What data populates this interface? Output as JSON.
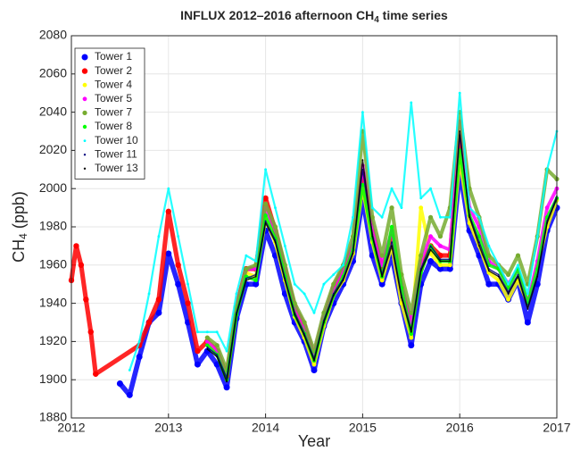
{
  "chart_data": {
    "type": "scatter",
    "title": [
      "INFLUX 2012–2016 afternoon  CH",
      "4",
      " time series"
    ],
    "xlabel": "Year",
    "ylabel": [
      "CH",
      "4",
      " (ppb)"
    ],
    "xlim": [
      2012,
      2017
    ],
    "xticks": [
      2012,
      2013,
      2014,
      2015,
      2016,
      2017
    ],
    "ylim": [
      1880,
      2080
    ],
    "yticks": [
      1880,
      1900,
      1920,
      1940,
      1960,
      1980,
      2000,
      2020,
      2040,
      2060,
      2080
    ],
    "grid": true,
    "legend": "upper left",
    "series": [
      {
        "name": "Tower 1",
        "color": "#0000ff",
        "x": [
          2012.5,
          2012.6,
          2012.7,
          2012.8,
          2012.9,
          2013.0,
          2013.1,
          2013.2,
          2013.3,
          2013.4,
          2013.5,
          2013.6,
          2013.7,
          2013.8,
          2013.9,
          2014.0,
          2014.1,
          2014.2,
          2014.3,
          2014.4,
          2014.5,
          2014.6,
          2014.7,
          2014.8,
          2014.9,
          2015.0,
          2015.1,
          2015.2,
          2015.3,
          2015.4,
          2015.5,
          2015.6,
          2015.7,
          2015.8,
          2015.9,
          2016.0,
          2016.1,
          2016.2,
          2016.3,
          2016.4,
          2016.5,
          2016.6,
          2016.7,
          2016.8,
          2016.9,
          2017.0
        ],
        "values": [
          1898,
          1892,
          1912,
          1930,
          1935,
          1966,
          1950,
          1930,
          1908,
          1915,
          1908,
          1896,
          1932,
          1950,
          1950,
          1978,
          1965,
          1945,
          1930,
          1920,
          1905,
          1928,
          1940,
          1950,
          1962,
          1995,
          1965,
          1950,
          1965,
          1940,
          1918,
          1950,
          1962,
          1958,
          1958,
          2010,
          1978,
          1965,
          1950,
          1950,
          1942,
          1952,
          1930,
          1950,
          1978,
          1990
        ]
      },
      {
        "name": "Tower 2",
        "color": "#ff0000",
        "x": [
          2012.0,
          2012.05,
          2012.1,
          2012.15,
          2012.2,
          2012.25,
          2012.7,
          2012.8,
          2012.9,
          2013.0,
          2013.1,
          2013.2,
          2013.3,
          2013.4,
          2013.5,
          2013.6,
          2013.7,
          2013.8,
          2013.9,
          2014.0,
          2014.1,
          2014.2,
          2014.3,
          2014.4,
          2014.5,
          2014.6,
          2014.7,
          2014.8,
          2014.9,
          2015.0,
          2015.1,
          2015.2,
          2015.3,
          2015.4,
          2015.5,
          2015.6,
          2015.7,
          2015.8,
          2015.9,
          2016.0
        ],
        "values": [
          1952,
          1970,
          1960,
          1942,
          1925,
          1903,
          1918,
          1930,
          1942,
          1988,
          1960,
          1940,
          1915,
          1920,
          1915,
          1902,
          1938,
          1958,
          1958,
          1995,
          1978,
          1958,
          1938,
          1928,
          1912,
          1932,
          1948,
          1958,
          1970,
          2008,
          1978,
          1958,
          1975,
          1948,
          1928,
          1958,
          1970,
          1965,
          1965,
          2025
        ]
      },
      {
        "name": "Tower 4",
        "color": "#ffff00",
        "x": [
          2013.4,
          2013.5,
          2013.6,
          2013.7,
          2013.8,
          2013.9,
          2014.0,
          2014.1,
          2014.2,
          2014.3,
          2014.4,
          2014.5,
          2014.6,
          2014.7,
          2014.8,
          2014.9,
          2015.0,
          2015.1,
          2015.2,
          2015.3,
          2015.4,
          2015.5,
          2015.6,
          2015.7,
          2015.8,
          2015.9,
          2016.0,
          2016.1,
          2016.2,
          2016.3,
          2016.4,
          2016.5,
          2016.6,
          2016.7,
          2016.8,
          2016.9,
          2017.0
        ],
        "values": [
          1920,
          1914,
          1902,
          1936,
          1956,
          1954,
          1984,
          1972,
          1952,
          1933,
          1922,
          1908,
          1928,
          1944,
          1952,
          1966,
          2000,
          1972,
          1952,
          1970,
          1940,
          1922,
          1990,
          1966,
          1960,
          1960,
          2015,
          1982,
          1970,
          1956,
          1952,
          1942,
          1952,
          1940,
          1960,
          1980,
          1994
        ]
      },
      {
        "name": "Tower 5",
        "color": "#ff00ff",
        "x": [
          2013.4,
          2013.5,
          2013.6,
          2013.7,
          2013.8,
          2013.9,
          2014.0,
          2014.1,
          2014.2,
          2014.3,
          2014.4,
          2014.5,
          2014.6,
          2014.7,
          2014.8,
          2014.9,
          2015.0,
          2015.1,
          2015.2,
          2015.3,
          2015.4,
          2015.5,
          2015.6,
          2015.7,
          2015.8,
          2015.9,
          2016.0,
          2016.1,
          2016.2,
          2016.3,
          2016.4,
          2016.5,
          2016.6,
          2016.7,
          2016.8,
          2016.9,
          2017.0
        ],
        "values": [
          1920,
          1915,
          1902,
          1938,
          1958,
          1958,
          1990,
          1978,
          1958,
          1938,
          1928,
          1913,
          1933,
          1948,
          1958,
          1972,
          2012,
          1980,
          1960,
          1978,
          1950,
          1930,
          1962,
          1975,
          1970,
          1968,
          2035,
          1990,
          1980,
          1962,
          1958,
          1950,
          1958,
          1940,
          1962,
          1990,
          2000
        ]
      },
      {
        "name": "Tower 7",
        "color": "#77ac30",
        "x": [
          2013.4,
          2013.5,
          2013.6,
          2013.7,
          2013.8,
          2013.9,
          2014.0,
          2014.1,
          2014.2,
          2014.3,
          2014.4,
          2014.5,
          2014.6,
          2014.7,
          2014.8,
          2014.9,
          2015.0,
          2015.1,
          2015.2,
          2015.3,
          2015.4,
          2015.5,
          2015.6,
          2015.7,
          2015.8,
          2015.9,
          2016.0,
          2016.1,
          2016.2,
          2016.3,
          2016.4,
          2016.5,
          2016.6,
          2016.7,
          2016.8,
          2016.9,
          2017.0
        ],
        "values": [
          1922,
          1918,
          1905,
          1938,
          1958,
          1960,
          1992,
          1980,
          1960,
          1940,
          1930,
          1915,
          1935,
          1950,
          1960,
          1975,
          2030,
          1985,
          1965,
          1990,
          1955,
          1935,
          1965,
          1985,
          1975,
          1990,
          2040,
          2000,
          1985,
          1965,
          1960,
          1955,
          1965,
          1950,
          1975,
          2010,
          2005
        ]
      },
      {
        "name": "Tower 8",
        "color": "#00ff00",
        "x": [
          2013.4,
          2013.5,
          2013.6,
          2013.7,
          2013.8,
          2013.9,
          2014.0,
          2014.1,
          2014.2,
          2014.3,
          2014.4,
          2014.5,
          2014.6,
          2014.7,
          2014.8,
          2014.9,
          2015.0,
          2015.1,
          2015.2,
          2015.3,
          2015.4,
          2015.5,
          2015.6,
          2015.7,
          2015.8,
          2015.9,
          2016.0,
          2016.1,
          2016.2,
          2016.3,
          2016.4,
          2016.5,
          2016.6,
          2016.7,
          2016.8,
          2016.9,
          2017.0
        ],
        "values": [
          1918,
          1913,
          1900,
          1934,
          1954,
          1952,
          1986,
          1974,
          1954,
          1934,
          1924,
          1910,
          1930,
          1944,
          1954,
          1968,
          2002,
          1974,
          1954,
          1980,
          1948,
          1924,
          1956,
          1970,
          1962,
          1962,
          2020,
          1986,
          1975,
          1960,
          1958,
          1948,
          1958,
          1940,
          1958,
          1985,
          1995
        ]
      },
      {
        "name": "Tower 10",
        "color": "#00ffff",
        "x": [
          2012.6,
          2012.7,
          2012.8,
          2012.9,
          2013.0,
          2013.1,
          2013.2,
          2013.3,
          2013.4,
          2013.5,
          2013.6,
          2013.7,
          2013.8,
          2013.9,
          2014.0,
          2014.1,
          2014.2,
          2014.3,
          2014.4,
          2014.5,
          2014.6,
          2014.7,
          2014.8,
          2014.9,
          2015.0,
          2015.1,
          2015.2,
          2015.3,
          2015.4,
          2015.5,
          2015.6,
          2015.7,
          2015.8,
          2015.9,
          2016.0,
          2016.1,
          2016.2,
          2016.3,
          2016.4,
          2016.5,
          2016.6,
          2016.7,
          2016.8,
          2016.9,
          2017.0
        ],
        "values": [
          1905,
          1920,
          1945,
          1975,
          2000,
          1975,
          1950,
          1925,
          1925,
          1925,
          1915,
          1945,
          1965,
          1962,
          2010,
          1990,
          1970,
          1950,
          1945,
          1935,
          1950,
          1955,
          1960,
          1985,
          2040,
          1990,
          1985,
          2000,
          1990,
          2045,
          1995,
          2000,
          1985,
          1985,
          2050,
          1990,
          1985,
          1970,
          1960,
          1950,
          1960,
          1945,
          1975,
          2010,
          2030
        ]
      },
      {
        "name": "Tower 11",
        "color": "#000080",
        "x": [
          2013.4,
          2013.5,
          2013.6,
          2013.7,
          2013.8,
          2013.9,
          2014.0,
          2014.1,
          2014.2,
          2014.3,
          2014.4,
          2014.5,
          2014.6,
          2014.7,
          2014.8,
          2014.9,
          2015.0,
          2015.1,
          2015.2,
          2015.3,
          2015.4,
          2015.5,
          2015.6,
          2015.7,
          2015.8,
          2015.9,
          2016.0,
          2016.1,
          2016.2,
          2016.3,
          2016.4,
          2016.5,
          2016.6,
          2016.7,
          2016.8,
          2016.9,
          2017.0
        ],
        "values": [
          1917,
          1913,
          1901,
          1935,
          1953,
          1955,
          1983,
          1973,
          1953,
          1935,
          1924,
          1911,
          1931,
          1945,
          1953,
          1967,
          2010,
          1976,
          1955,
          1972,
          1944,
          1926,
          1958,
          1970,
          1963,
          1963,
          2028,
          1986,
          1972,
          1958,
          1955,
          1946,
          1955,
          1938,
          1955,
          1983,
          1996
        ]
      },
      {
        "name": "Tower 13",
        "color": "#000000",
        "x": [
          2013.4,
          2013.5,
          2013.6,
          2013.7,
          2013.8,
          2013.9,
          2014.0,
          2014.1,
          2014.2,
          2014.3,
          2014.4,
          2014.5,
          2014.6,
          2014.7,
          2014.8,
          2014.9,
          2015.0,
          2015.1,
          2015.2,
          2015.3,
          2015.4,
          2015.5,
          2015.6,
          2015.7,
          2015.8,
          2015.9,
          2016.0,
          2016.1,
          2016.2,
          2016.3,
          2016.4,
          2016.5,
          2016.6,
          2016.7,
          2016.8,
          2016.9,
          2017.0
        ],
        "values": [
          1916,
          1912,
          1899,
          1934,
          1952,
          1954,
          1982,
          1972,
          1952,
          1934,
          1923,
          1910,
          1930,
          1944,
          1952,
          1966,
          2015,
          1975,
          1954,
          1970,
          1943,
          1925,
          1957,
          1968,
          1962,
          1962,
          2030,
          1985,
          1970,
          1957,
          1954,
          1945,
          1954,
          1937,
          1954,
          1982,
          1995
        ]
      }
    ]
  }
}
